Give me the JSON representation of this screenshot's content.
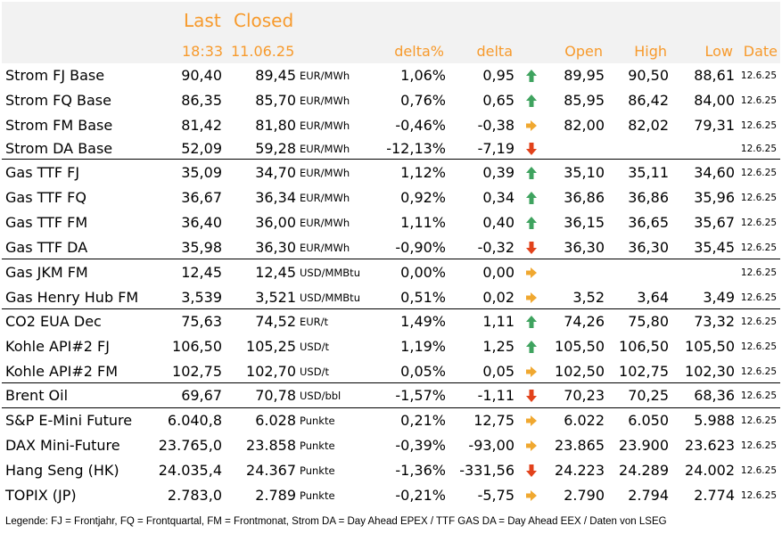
{
  "header": {
    "last_label": "Last",
    "closed_label": "Closed",
    "last_time": "18:33",
    "closed_date": "11.06.25",
    "delta_pct_label": "delta%",
    "delta_label": "delta",
    "open_label": "Open",
    "high_label": "High",
    "low_label": "Low",
    "date_label": "Date"
  },
  "colors": {
    "header_text": "#f79a2c",
    "up": "#3fa35f",
    "down": "#e2421b",
    "flat": "#f0a830"
  },
  "rows": [
    {
      "name": "Strom FJ Base",
      "last": "90,40",
      "closed": "89,45",
      "unit": "EUR/MWh",
      "delta_pct": "1,06%",
      "delta": "0,95",
      "trend": "up",
      "open": "89,95",
      "high": "90,50",
      "low": "88,61",
      "date": "12.6.25"
    },
    {
      "name": "Strom FQ Base",
      "last": "86,35",
      "closed": "85,70",
      "unit": "EUR/MWh",
      "delta_pct": "0,76%",
      "delta": "0,65",
      "trend": "up",
      "open": "85,95",
      "high": "86,42",
      "low": "84,00",
      "date": "12.6.25"
    },
    {
      "name": "Strom FM Base",
      "last": "81,42",
      "closed": "81,80",
      "unit": "EUR/MWh",
      "delta_pct": "-0,46%",
      "delta": "-0,38",
      "trend": "flat",
      "open": "82,00",
      "high": "82,02",
      "low": "79,31",
      "date": "12.6.25"
    },
    {
      "name": "Strom DA Base",
      "last": "52,09",
      "closed": "59,28",
      "unit": "EUR/MWh",
      "delta_pct": "-12,13%",
      "delta": "-7,19",
      "trend": "down",
      "open": "",
      "high": "",
      "low": "",
      "date": "12.6.25"
    },
    {
      "name": "Gas TTF FJ",
      "last": "35,09",
      "closed": "34,70",
      "unit": "EUR/MWh",
      "delta_pct": "1,12%",
      "delta": "0,39",
      "trend": "up",
      "open": "35,10",
      "high": "35,11",
      "low": "34,60",
      "date": "12.6.25"
    },
    {
      "name": "Gas TTF FQ",
      "last": "36,67",
      "closed": "36,34",
      "unit": "EUR/MWh",
      "delta_pct": "0,92%",
      "delta": "0,34",
      "trend": "up",
      "open": "36,86",
      "high": "36,86",
      "low": "35,96",
      "date": "12.6.25"
    },
    {
      "name": "Gas TTF FM",
      "last": "36,40",
      "closed": "36,00",
      "unit": "EUR/MWh",
      "delta_pct": "1,11%",
      "delta": "0,40",
      "trend": "up",
      "open": "36,15",
      "high": "36,65",
      "low": "35,67",
      "date": "12.6.25"
    },
    {
      "name": "Gas TTF DA",
      "last": "35,98",
      "closed": "36,30",
      "unit": "EUR/MWh",
      "delta_pct": "-0,90%",
      "delta": "-0,32",
      "trend": "down",
      "open": "36,30",
      "high": "36,30",
      "low": "35,45",
      "date": "12.6.25"
    },
    {
      "name": "Gas JKM FM",
      "last": "12,45",
      "closed": "12,45",
      "unit": "USD/MMBtu",
      "delta_pct": "0,00%",
      "delta": "0,00",
      "trend": "flat",
      "open": "",
      "high": "",
      "low": "",
      "date": "12.6.25"
    },
    {
      "name": "Gas Henry Hub FM",
      "last": "3,539",
      "closed": "3,521",
      "unit": "USD/MMBtu",
      "delta_pct": "0,51%",
      "delta": "0,02",
      "trend": "flat",
      "open": "3,52",
      "high": "3,64",
      "low": "3,49",
      "date": "12.6.25"
    },
    {
      "name": "CO2 EUA Dec",
      "last": "75,63",
      "closed": "74,52",
      "unit": "EUR/t",
      "delta_pct": "1,49%",
      "delta": "1,11",
      "trend": "up",
      "open": "74,26",
      "high": "75,80",
      "low": "73,32",
      "date": "12.6.25"
    },
    {
      "name": "Kohle API#2 FJ",
      "last": "106,50",
      "closed": "105,25",
      "unit": "USD/t",
      "delta_pct": "1,19%",
      "delta": "1,25",
      "trend": "up",
      "open": "105,50",
      "high": "106,50",
      "low": "105,50",
      "date": "12.6.25"
    },
    {
      "name": "Kohle API#2 FM",
      "last": "102,75",
      "closed": "102,70",
      "unit": "USD/t",
      "delta_pct": "0,05%",
      "delta": "0,05",
      "trend": "flat",
      "open": "102,50",
      "high": "102,75",
      "low": "102,30",
      "date": "12.6.25"
    },
    {
      "name": "Brent Oil",
      "last": "69,67",
      "closed": "70,78",
      "unit": "USD/bbl",
      "delta_pct": "-1,57%",
      "delta": "-1,11",
      "trend": "down",
      "open": "70,23",
      "high": "70,25",
      "low": "68,36",
      "date": "12.6.25"
    },
    {
      "name": "S&P E-Mini Future",
      "last": "6.040,8",
      "closed": "6.028",
      "unit": "Punkte",
      "delta_pct": "0,21%",
      "delta": "12,75",
      "trend": "flat",
      "open": "6.022",
      "high": "6.050",
      "low": "5.988",
      "date": "12.6.25"
    },
    {
      "name": "DAX Mini-Future",
      "last": "23.765,0",
      "closed": "23.858",
      "unit": "Punkte",
      "delta_pct": "-0,39%",
      "delta": "-93,00",
      "trend": "flat",
      "open": "23.865",
      "high": "23.900",
      "low": "23.623",
      "date": "12.6.25"
    },
    {
      "name": "Hang Seng (HK)",
      "last": "24.035,4",
      "closed": "24.367",
      "unit": "Punkte",
      "delta_pct": "-1,36%",
      "delta": "-331,56",
      "trend": "down",
      "open": "24.223",
      "high": "24.289",
      "low": "24.002",
      "date": "12.6.25"
    },
    {
      "name": "TOPIX (JP)",
      "last": "2.783,0",
      "closed": "2.789",
      "unit": "Punkte",
      "delta_pct": "-0,21%",
      "delta": "-5,75",
      "trend": "flat",
      "open": "2.790",
      "high": "2.794",
      "low": "2.774",
      "date": "12.6.25"
    }
  ],
  "legend": "Legende: FJ = Frontjahr, FQ = Frontquartal, FM = Frontmonat, Strom DA = Day Ahead EPEX / TTF GAS DA = Day Ahead EEX / Daten von LSEG"
}
